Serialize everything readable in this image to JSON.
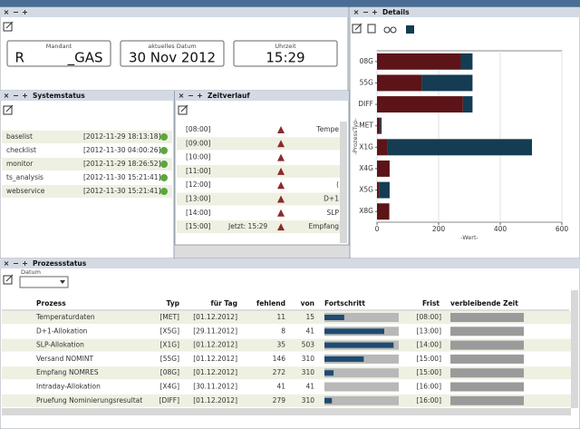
{
  "mandant": {
    "label": "Mandant",
    "value": "R          _GAS"
  },
  "datum": {
    "label": "aktuelles Datum",
    "value": "30 Nov 2012"
  },
  "uhrzeit": {
    "label": "Uhrzeit",
    "value": "15:29"
  },
  "systemstatus": {
    "title": "Systemstatus",
    "rows": [
      {
        "name": "baselist",
        "time": "[2012-11-29 18:13:18]"
      },
      {
        "name": "checklist",
        "time": "[2012-11-30 04:00:26]"
      },
      {
        "name": "monitor",
        "time": "[2012-11-29 18:26:52]"
      },
      {
        "name": "ts_analysis",
        "time": "[2012-11-30 15:21:41]"
      },
      {
        "name": "webservice",
        "time": "[2012-11-30 15:21:41]"
      }
    ]
  },
  "zeitverlauf": {
    "title": "Zeitverlauf",
    "now": "Jetzt: 15:29",
    "rows": [
      {
        "time": "[08:00]",
        "label": "Tempe"
      },
      {
        "time": "[09:00]"
      },
      {
        "time": "[10:00]"
      },
      {
        "time": "[11:00]"
      },
      {
        "time": "[12:00]",
        "label": "("
      },
      {
        "time": "[13:00]",
        "label": "D+1"
      },
      {
        "time": "[14:00]",
        "label": "SLP"
      },
      {
        "time": "[15:00]",
        "label": "Empfang"
      }
    ]
  },
  "details": {
    "title": "Details"
  },
  "chart_data": {
    "type": "bar",
    "orientation": "horizontal",
    "stacked": true,
    "xlabel": "-Wert-",
    "ylabel": "-ProzessTyp-",
    "categories": [
      "08G",
      "55G",
      "DIFF",
      "MET",
      "X1G",
      "X4G",
      "X5G",
      "X8G"
    ],
    "series": [
      {
        "color": "#5c1418",
        "values": [
          272,
          146,
          279,
          11,
          35,
          41,
          8,
          40
        ]
      },
      {
        "color": "#143c52",
        "values": [
          38,
          164,
          31,
          4,
          468,
          0,
          33,
          0
        ]
      }
    ],
    "xlim": [
      0,
      600
    ],
    "xticks": [
      0,
      200,
      400,
      600
    ],
    "grid": true
  },
  "prozessstatus": {
    "title": "Prozessstatus",
    "datum_label": "Datum",
    "columns": [
      "Prozess",
      "Typ",
      "für Tag",
      "fehlend",
      "von",
      "Fortschritt",
      "Frist",
      "verbleibende Zeit"
    ],
    "rows": [
      {
        "prozess": "Temperaturdaten",
        "typ": "[MET]",
        "tag": "[01.12.2012]",
        "fehlend": 11,
        "von": 15,
        "frist": "[08:00]"
      },
      {
        "prozess": "D+1-Allokation",
        "typ": "[X5G]",
        "tag": "[29.11.2012]",
        "fehlend": 8,
        "von": 41,
        "frist": "[13:00]"
      },
      {
        "prozess": "SLP-Allokation",
        "typ": "[X1G]",
        "tag": "[01.12.2012]",
        "fehlend": 35,
        "von": 503,
        "frist": "[14:00]"
      },
      {
        "prozess": "Versand NOMINT",
        "typ": "[55G]",
        "tag": "[01.12.2012]",
        "fehlend": 146,
        "von": 310,
        "frist": "[15:00]"
      },
      {
        "prozess": "Empfang NOMRES",
        "typ": "[08G]",
        "tag": "[01.12.2012]",
        "fehlend": 272,
        "von": 310,
        "frist": "[15:00]"
      },
      {
        "prozess": "Intraday-Allokation",
        "typ": "[X4G]",
        "tag": "[30.11.2012]",
        "fehlend": 41,
        "von": 41,
        "frist": "[16:00]"
      },
      {
        "prozess": "Pruefung Nominierungsresultat",
        "typ": "[DIFF]",
        "tag": "[01.12.2012]",
        "fehlend": 279,
        "von": 310,
        "frist": "[16:00]"
      }
    ]
  }
}
